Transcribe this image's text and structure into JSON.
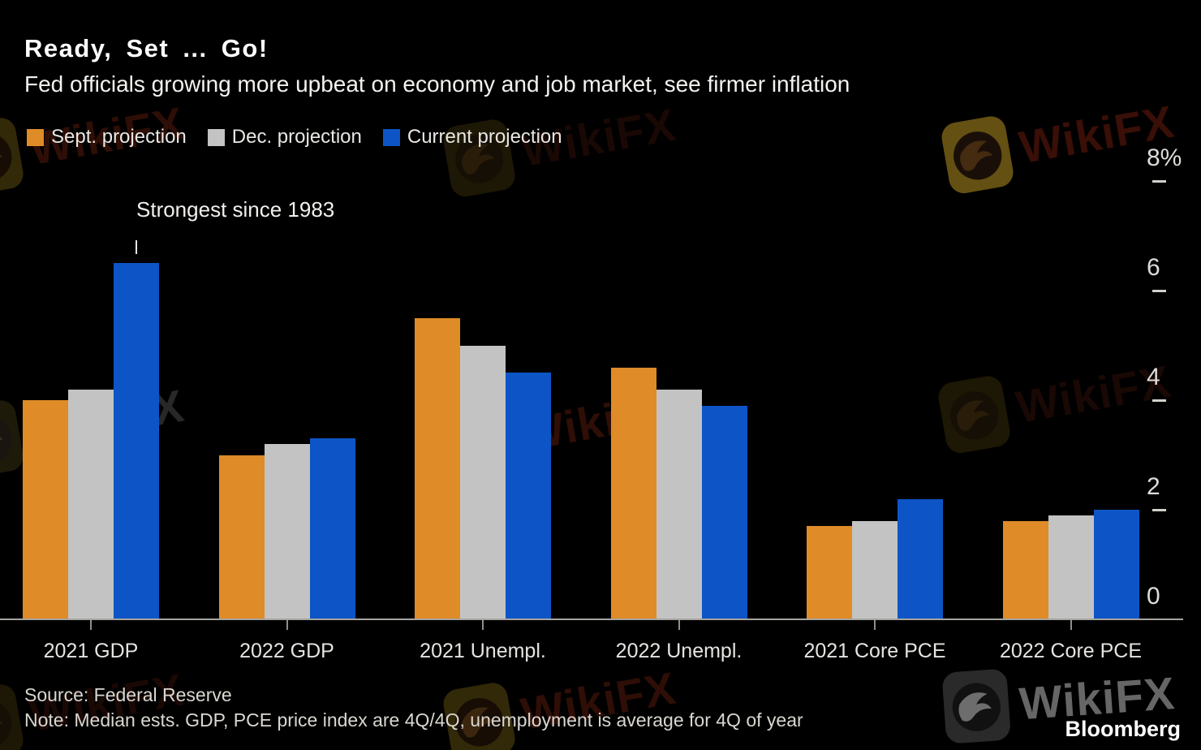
{
  "header": {
    "title": "Ready, Set ... Go!",
    "subtitle": "Fed officials growing more upbeat on economy and job market, see firmer inflation"
  },
  "chart_data": {
    "type": "bar",
    "categories": [
      "2021 GDP",
      "2022 GDP",
      "2021 Unempl.",
      "2022 Unempl.",
      "2021 Core PCE",
      "2022 Core PCE"
    ],
    "series": [
      {
        "name": "Sept. projection",
        "color": "#DE8B28",
        "values": [
          4.0,
          3.0,
          5.5,
          4.6,
          1.7,
          1.8
        ]
      },
      {
        "name": "Dec. projection",
        "color": "#C3C3C3",
        "values": [
          4.2,
          3.2,
          5.0,
          4.2,
          1.8,
          1.9
        ]
      },
      {
        "name": "Current projection",
        "color": "#0D55C6",
        "values": [
          6.5,
          3.3,
          4.5,
          3.9,
          2.2,
          2.0
        ]
      }
    ],
    "ylim": [
      0,
      8
    ],
    "yticks": [
      0,
      2,
      4,
      6,
      8
    ],
    "ytick_labels": [
      "0",
      "2",
      "4",
      "6",
      "8%"
    ],
    "legend_position": "top",
    "grid": false,
    "annotation": {
      "text": "Strongest since 1983",
      "target": "2021 GDP Current projection bar"
    }
  },
  "footer": {
    "source": "Source: Federal Reserve",
    "note": "Note: Median ests. GDP, PCE price index are 4Q/4Q, unemployment is average for 4Q of year",
    "brand": "Bloomberg"
  },
  "watermark": {
    "text": "WikiFX"
  }
}
